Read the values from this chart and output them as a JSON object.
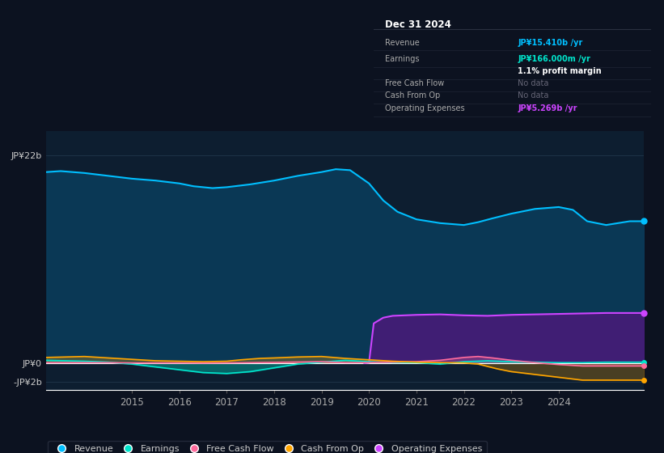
{
  "bg_color": "#0c1220",
  "plot_bg_color": "#0d1e30",
  "y_label_top": "JP¥22b",
  "y_label_zero": "JP¥0",
  "y_label_neg": "-JP¥2b",
  "x_ticks": [
    2015,
    2016,
    2017,
    2018,
    2019,
    2020,
    2021,
    2022,
    2023,
    2024
  ],
  "ylim": [
    -2.8,
    24.5
  ],
  "xlim": [
    2013.2,
    2025.8
  ],
  "revenue_color": "#00bfff",
  "earnings_color": "#00e5cc",
  "fcf_color": "#ff6b9d",
  "cashfromop_color": "#ffa500",
  "opex_color": "#cc44ff",
  "revenue_fill_color": "#0a3d5c",
  "opex_fill_color": "#4a1a7a",
  "info_box": {
    "date": "Dec 31 2024",
    "revenue_val": "JP¥15.410b",
    "revenue_color": "#00bfff",
    "earnings_val": "JP¥166.000m",
    "earnings_color": "#00e5cc",
    "profit_margin": "1.1%",
    "opex_val": "JP¥5.269b",
    "opex_color": "#cc44ff"
  },
  "revenue_x": [
    2013.2,
    2013.5,
    2014.0,
    2014.5,
    2015.0,
    2015.5,
    2016.0,
    2016.3,
    2016.7,
    2017.0,
    2017.5,
    2018.0,
    2018.5,
    2019.0,
    2019.3,
    2019.6,
    2020.0,
    2020.3,
    2020.6,
    2021.0,
    2021.5,
    2022.0,
    2022.3,
    2022.6,
    2023.0,
    2023.5,
    2024.0,
    2024.3,
    2024.6,
    2025.0,
    2025.5,
    2025.8
  ],
  "revenue_y": [
    20.2,
    20.3,
    20.1,
    19.8,
    19.5,
    19.3,
    19.0,
    18.7,
    18.5,
    18.6,
    18.9,
    19.3,
    19.8,
    20.2,
    20.5,
    20.4,
    19.0,
    17.2,
    16.0,
    15.2,
    14.8,
    14.6,
    14.9,
    15.3,
    15.8,
    16.3,
    16.5,
    16.2,
    15.0,
    14.6,
    15.0,
    15.0
  ],
  "earnings_x": [
    2013.2,
    2014.0,
    2014.5,
    2015.0,
    2015.5,
    2016.0,
    2016.5,
    2017.0,
    2017.5,
    2018.0,
    2018.5,
    2019.0,
    2019.5,
    2020.0,
    2020.5,
    2021.0,
    2021.5,
    2022.0,
    2022.5,
    2023.0,
    2023.5,
    2024.0,
    2024.5,
    2025.0,
    2025.8
  ],
  "earnings_y": [
    0.3,
    0.2,
    0.1,
    -0.1,
    -0.4,
    -0.7,
    -1.0,
    -1.1,
    -0.9,
    -0.5,
    -0.1,
    0.1,
    0.3,
    0.15,
    0.05,
    0.05,
    -0.1,
    0.15,
    0.25,
    0.15,
    0.1,
    0.05,
    0.05,
    0.1,
    0.1
  ],
  "fcf_x": [
    2013.2,
    2014.0,
    2014.5,
    2015.0,
    2015.5,
    2016.0,
    2016.5,
    2017.0,
    2017.5,
    2018.0,
    2018.5,
    2019.0,
    2019.5,
    2020.0,
    2020.5,
    2021.0,
    2021.5,
    2022.0,
    2022.3,
    2022.6,
    2023.0,
    2023.5,
    2024.0,
    2024.5,
    2025.0,
    2025.8
  ],
  "fcf_y": [
    0.05,
    0.05,
    0.05,
    0.02,
    0.02,
    0.02,
    0.0,
    0.02,
    0.05,
    0.08,
    0.12,
    0.15,
    0.05,
    0.05,
    0.1,
    0.15,
    0.3,
    0.6,
    0.7,
    0.55,
    0.3,
    0.05,
    -0.15,
    -0.3,
    -0.3,
    -0.3
  ],
  "cashfromop_x": [
    2013.2,
    2014.0,
    2014.5,
    2015.0,
    2015.5,
    2016.0,
    2016.5,
    2017.0,
    2017.3,
    2017.7,
    2018.0,
    2018.5,
    2019.0,
    2019.5,
    2020.0,
    2020.5,
    2021.0,
    2021.5,
    2022.0,
    2022.3,
    2022.7,
    2023.0,
    2023.5,
    2024.0,
    2024.5,
    2025.0,
    2025.8
  ],
  "cashfromop_y": [
    0.6,
    0.7,
    0.55,
    0.4,
    0.25,
    0.2,
    0.15,
    0.2,
    0.35,
    0.5,
    0.55,
    0.65,
    0.7,
    0.5,
    0.35,
    0.2,
    0.1,
    0.05,
    0.02,
    -0.1,
    -0.6,
    -0.9,
    -1.2,
    -1.5,
    -1.8,
    -1.8,
    -1.8
  ],
  "opex_x": [
    2019.9,
    2020.0,
    2020.1,
    2020.3,
    2020.5,
    2021.0,
    2021.5,
    2022.0,
    2022.5,
    2023.0,
    2023.5,
    2024.0,
    2024.5,
    2025.0,
    2025.8
  ],
  "opex_y": [
    0.0,
    0.05,
    4.2,
    4.8,
    5.0,
    5.1,
    5.15,
    5.05,
    5.0,
    5.1,
    5.15,
    5.2,
    5.25,
    5.3,
    5.3
  ]
}
